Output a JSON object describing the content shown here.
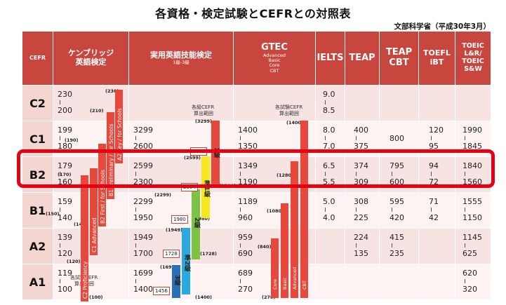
{
  "title": "各資格・検定試験とCEFRとの対照表",
  "source": "文部科学省（平成30年3月）",
  "headers": {
    "cefr": "CEFR",
    "cambridge": [
      "ケンブリッジ",
      "英語検定"
    ],
    "eiken": "実用英語技能検定",
    "eiken_sub": "1級-3級",
    "gtec": "GTEC",
    "gtec_sub": [
      "Advanced",
      "Basic",
      "Core",
      "CBT"
    ],
    "ielts": "IELTS",
    "teap": "TEAP",
    "teap_cbt": [
      "TEAP",
      "CBT"
    ],
    "toefl": [
      "TOEFL",
      "iBT"
    ],
    "toeic": [
      "TOEIC",
      "L&R/",
      "TOEIC",
      "S&W"
    ]
  },
  "levels": [
    "C2",
    "C1",
    "B2",
    "B1",
    "A2",
    "A1"
  ],
  "cambridge": {
    "ranges": [
      [
        "230",
        "200"
      ],
      [
        "199",
        "180"
      ],
      [
        "179",
        "160"
      ],
      [
        "159",
        "140"
      ],
      [
        "139",
        "120"
      ],
      [
        "119",
        "100"
      ]
    ],
    "marks": [
      "(230)",
      "(210)",
      "(190)",
      "(170)",
      "(150)",
      "(140)",
      "(120)",
      "(100)"
    ],
    "note": [
      "各試験CEFR",
      "算出範囲"
    ],
    "exams": [
      "C2 Proficiency",
      "C1 Advanced",
      "B2 First / for Schools",
      "B1 Preliminary / for Schools",
      "A2 Key / for Schools"
    ]
  },
  "eiken": {
    "ranges": [
      [
        "3299",
        "2600"
      ],
      [
        "2599",
        "2300"
      ],
      [
        "2299",
        "1950"
      ],
      [
        "1949",
        "1700"
      ],
      [
        "1699",
        "1400"
      ]
    ],
    "marks": [
      "(3299)",
      "(2599)",
      "(2304)",
      "(2299)",
      "(1980)",
      "(1949)",
      "(1728)",
      "(1699)",
      "(1400)"
    ],
    "boxes": [
      "2630",
      "2304",
      "1980",
      "1728",
      "1456"
    ],
    "note": [
      "各級CEFR",
      "算出範囲"
    ],
    "grades": [
      "1級",
      "準1級",
      "2級",
      "準2級",
      "3級"
    ]
  },
  "gtec": {
    "ranges": [
      [
        "1400",
        "1350"
      ],
      [
        "1349",
        "1190"
      ],
      [
        "1189",
        "960"
      ],
      [
        "959",
        "690"
      ],
      [
        "689",
        "270"
      ]
    ],
    "marks": [
      "(1400)",
      "(1280)",
      "(1080)",
      "(840)",
      "(270)"
    ],
    "note": [
      "各試験CEFR",
      "算出範囲"
    ],
    "types": [
      "CBT",
      "Advanced",
      "Basic",
      "Core"
    ]
  },
  "ielts": [
    [
      "9.0",
      "8.5"
    ],
    [
      "8.0",
      "7.0"
    ],
    [
      "6.5",
      "5.5"
    ],
    [
      "5.0",
      "4.0"
    ],
    [
      "",
      ""
    ],
    [
      "",
      ""
    ]
  ],
  "teap": [
    [
      "",
      ""
    ],
    [
      "400",
      "375"
    ],
    [
      "374",
      "309"
    ],
    [
      "308",
      "225"
    ],
    [
      "224",
      "135"
    ],
    [
      "",
      ""
    ]
  ],
  "teap_cbt": [
    "",
    "800",
    [
      "795",
      "600"
    ],
    [
      "595",
      "420"
    ],
    [
      "415",
      "235"
    ],
    ""
  ],
  "toefl": [
    [
      "",
      ""
    ],
    [
      "120",
      "95"
    ],
    [
      "94",
      "72"
    ],
    [
      "71",
      "42"
    ],
    [
      "",
      ""
    ],
    [
      "",
      ""
    ]
  ],
  "toeic": [
    [
      "",
      ""
    ],
    [
      "1990",
      "1845"
    ],
    [
      "1840",
      "1560"
    ],
    [
      "1555",
      "1150"
    ],
    [
      "1145",
      "625"
    ],
    [
      "620",
      "320"
    ]
  ],
  "colors": {
    "header": "#c9463f",
    "cell": "#f7e4e2",
    "bar": "#e8483c",
    "highlight": "#e60012"
  }
}
